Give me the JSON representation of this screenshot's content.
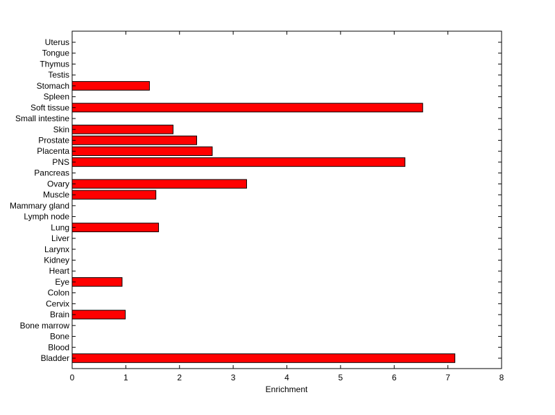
{
  "chart_data": {
    "type": "bar",
    "orientation": "horizontal",
    "xlabel": "Enrichment",
    "ylabel": "",
    "xlim": [
      0,
      8
    ],
    "xticks": [
      0,
      1,
      2,
      3,
      4,
      5,
      6,
      7,
      8
    ],
    "grid": false,
    "bar_color": "#ff0000",
    "categories": [
      "Bladder",
      "Blood",
      "Bone",
      "Bone marrow",
      "Brain",
      "Cervix",
      "Colon",
      "Eye",
      "Heart",
      "Kidney",
      "Larynx",
      "Liver",
      "Lung",
      "Lymph node",
      "Mammary gland",
      "Muscle",
      "Ovary",
      "Pancreas",
      "PNS",
      "Placenta",
      "Prostate",
      "Skin",
      "Small intestine",
      "Soft tissue",
      "Spleen",
      "Stomach",
      "Testis",
      "Thymus",
      "Tongue",
      "Uterus"
    ],
    "values": [
      7.13,
      0,
      0,
      0,
      0.99,
      0,
      0,
      0.93,
      0,
      0,
      0,
      0,
      1.61,
      0,
      0,
      1.56,
      3.25,
      0,
      6.2,
      2.61,
      2.32,
      1.88,
      0,
      6.53,
      0,
      1.44,
      0,
      0,
      0,
      0
    ]
  }
}
